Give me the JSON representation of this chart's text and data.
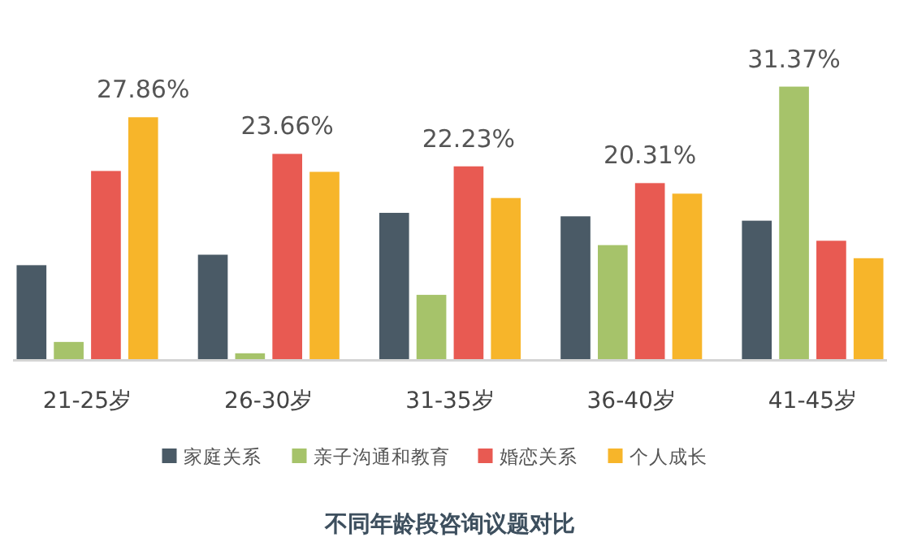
{
  "chart_data": {
    "type": "bar",
    "title": "不同年龄段咨询议题对比",
    "categories": [
      "21-25岁",
      "26-30岁",
      "31-35岁",
      "36-40岁",
      "41-45岁"
    ],
    "legend": "bottom",
    "series": [
      {
        "name": "家庭关系",
        "color": "#4a5a66",
        "values": [
          10.9,
          12.1,
          16.9,
          16.5,
          16.0
        ],
        "value_labels": [
          null,
          null,
          null,
          null,
          null
        ]
      },
      {
        "name": "亲子沟通和教育",
        "color": "#a6c36a",
        "values": [
          2.1,
          0.8,
          7.5,
          13.2,
          31.37
        ],
        "value_labels": [
          null,
          null,
          null,
          null,
          "31.37%"
        ]
      },
      {
        "name": "婚恋关系",
        "color": "#e85a52",
        "values": [
          21.7,
          23.66,
          22.23,
          20.31,
          13.7
        ],
        "value_labels": [
          null,
          "23.66%",
          "22.23%",
          "20.31%",
          null
        ]
      },
      {
        "name": "个人成长",
        "color": "#f7b52a",
        "values": [
          27.86,
          21.6,
          18.6,
          19.1,
          11.7
        ],
        "value_labels": [
          "27.86%",
          null,
          null,
          null,
          null
        ]
      }
    ]
  }
}
